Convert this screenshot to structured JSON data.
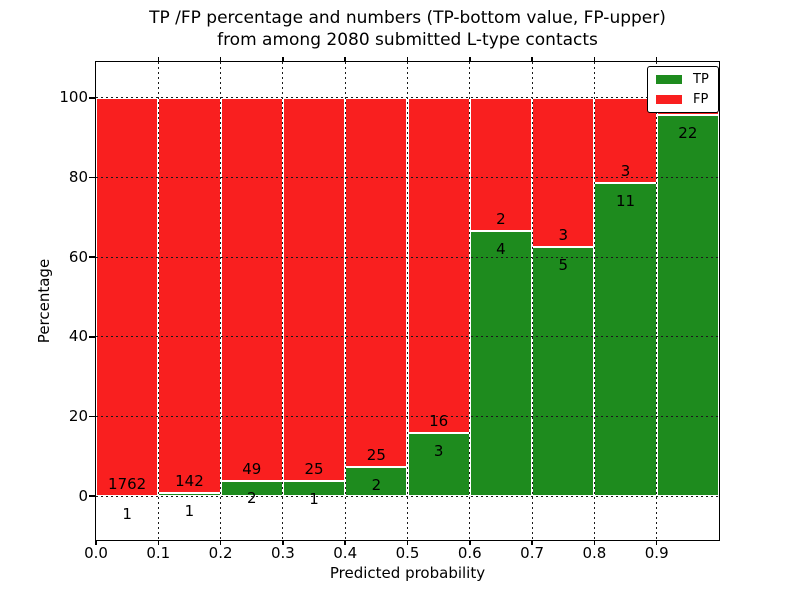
{
  "title": {
    "line1": "TP /FP percentage and numbers (TP-bottom value, FP-upper)",
    "line2": "from among 2080 submitted L-type contacts"
  },
  "axes": {
    "xlabel": "Predicted probability",
    "ylabel": "Percentage",
    "x_ticks": [
      "0.0",
      "0.1",
      "0.2",
      "0.3",
      "0.4",
      "0.5",
      "0.6",
      "0.7",
      "0.8",
      "0.9"
    ],
    "x_tick_values": [
      0.0,
      0.1,
      0.2,
      0.3,
      0.4,
      0.5,
      0.6,
      0.7,
      0.8,
      0.9
    ],
    "y_ticks": [
      "0",
      "20",
      "40",
      "60",
      "80",
      "100"
    ],
    "y_tick_values": [
      0,
      20,
      40,
      60,
      80,
      100
    ]
  },
  "legend": {
    "items": [
      {
        "label": "TP",
        "color": "#1e8b1e"
      },
      {
        "label": "FP",
        "color": "#f91f1f"
      }
    ]
  },
  "colors": {
    "tp_green": "#1e8b1e",
    "fp_red": "#f91f1f",
    "grid": "#1a1a1a",
    "background": "#ffffff"
  },
  "chart_data": {
    "type": "bar",
    "subtype": "stacked-100-percent",
    "title": "TP /FP percentage and numbers (TP-bottom value, FP-upper) from among 2080 submitted L-type contacts",
    "xlabel": "Predicted probability",
    "ylabel": "Percentage",
    "total_submitted": 2080,
    "bin_edges": [
      0.0,
      0.1,
      0.2,
      0.3,
      0.4,
      0.5,
      0.6,
      0.7,
      0.8,
      0.9,
      1.0
    ],
    "series": [
      {
        "name": "TP",
        "color": "#1e8b1e",
        "counts": [
          1,
          1,
          2,
          1,
          2,
          3,
          4,
          5,
          11,
          22
        ],
        "percent": [
          0.057,
          0.699,
          3.922,
          3.846,
          7.407,
          15.789,
          66.667,
          62.5,
          78.571,
          95.652
        ]
      },
      {
        "name": "FP",
        "color": "#f91f1f",
        "counts": [
          1762,
          142,
          49,
          25,
          25,
          16,
          2,
          3,
          3,
          null
        ],
        "percent": [
          99.943,
          99.301,
          96.078,
          96.154,
          92.593,
          84.211,
          33.333,
          37.5,
          21.429,
          4.348
        ]
      }
    ],
    "tp_labels": [
      "1",
      "1",
      "2",
      "1",
      "2",
      "3",
      "4",
      "5",
      "11",
      "22"
    ],
    "fp_labels": [
      "1762",
      "142",
      "49",
      "25",
      "25",
      "16",
      "2",
      "3",
      "3",
      ""
    ],
    "ylim": [
      -11,
      109
    ],
    "xlim": [
      0,
      1
    ],
    "grid": "dotted black, both axes, drawn over bars",
    "legend_position": "upper-right"
  }
}
